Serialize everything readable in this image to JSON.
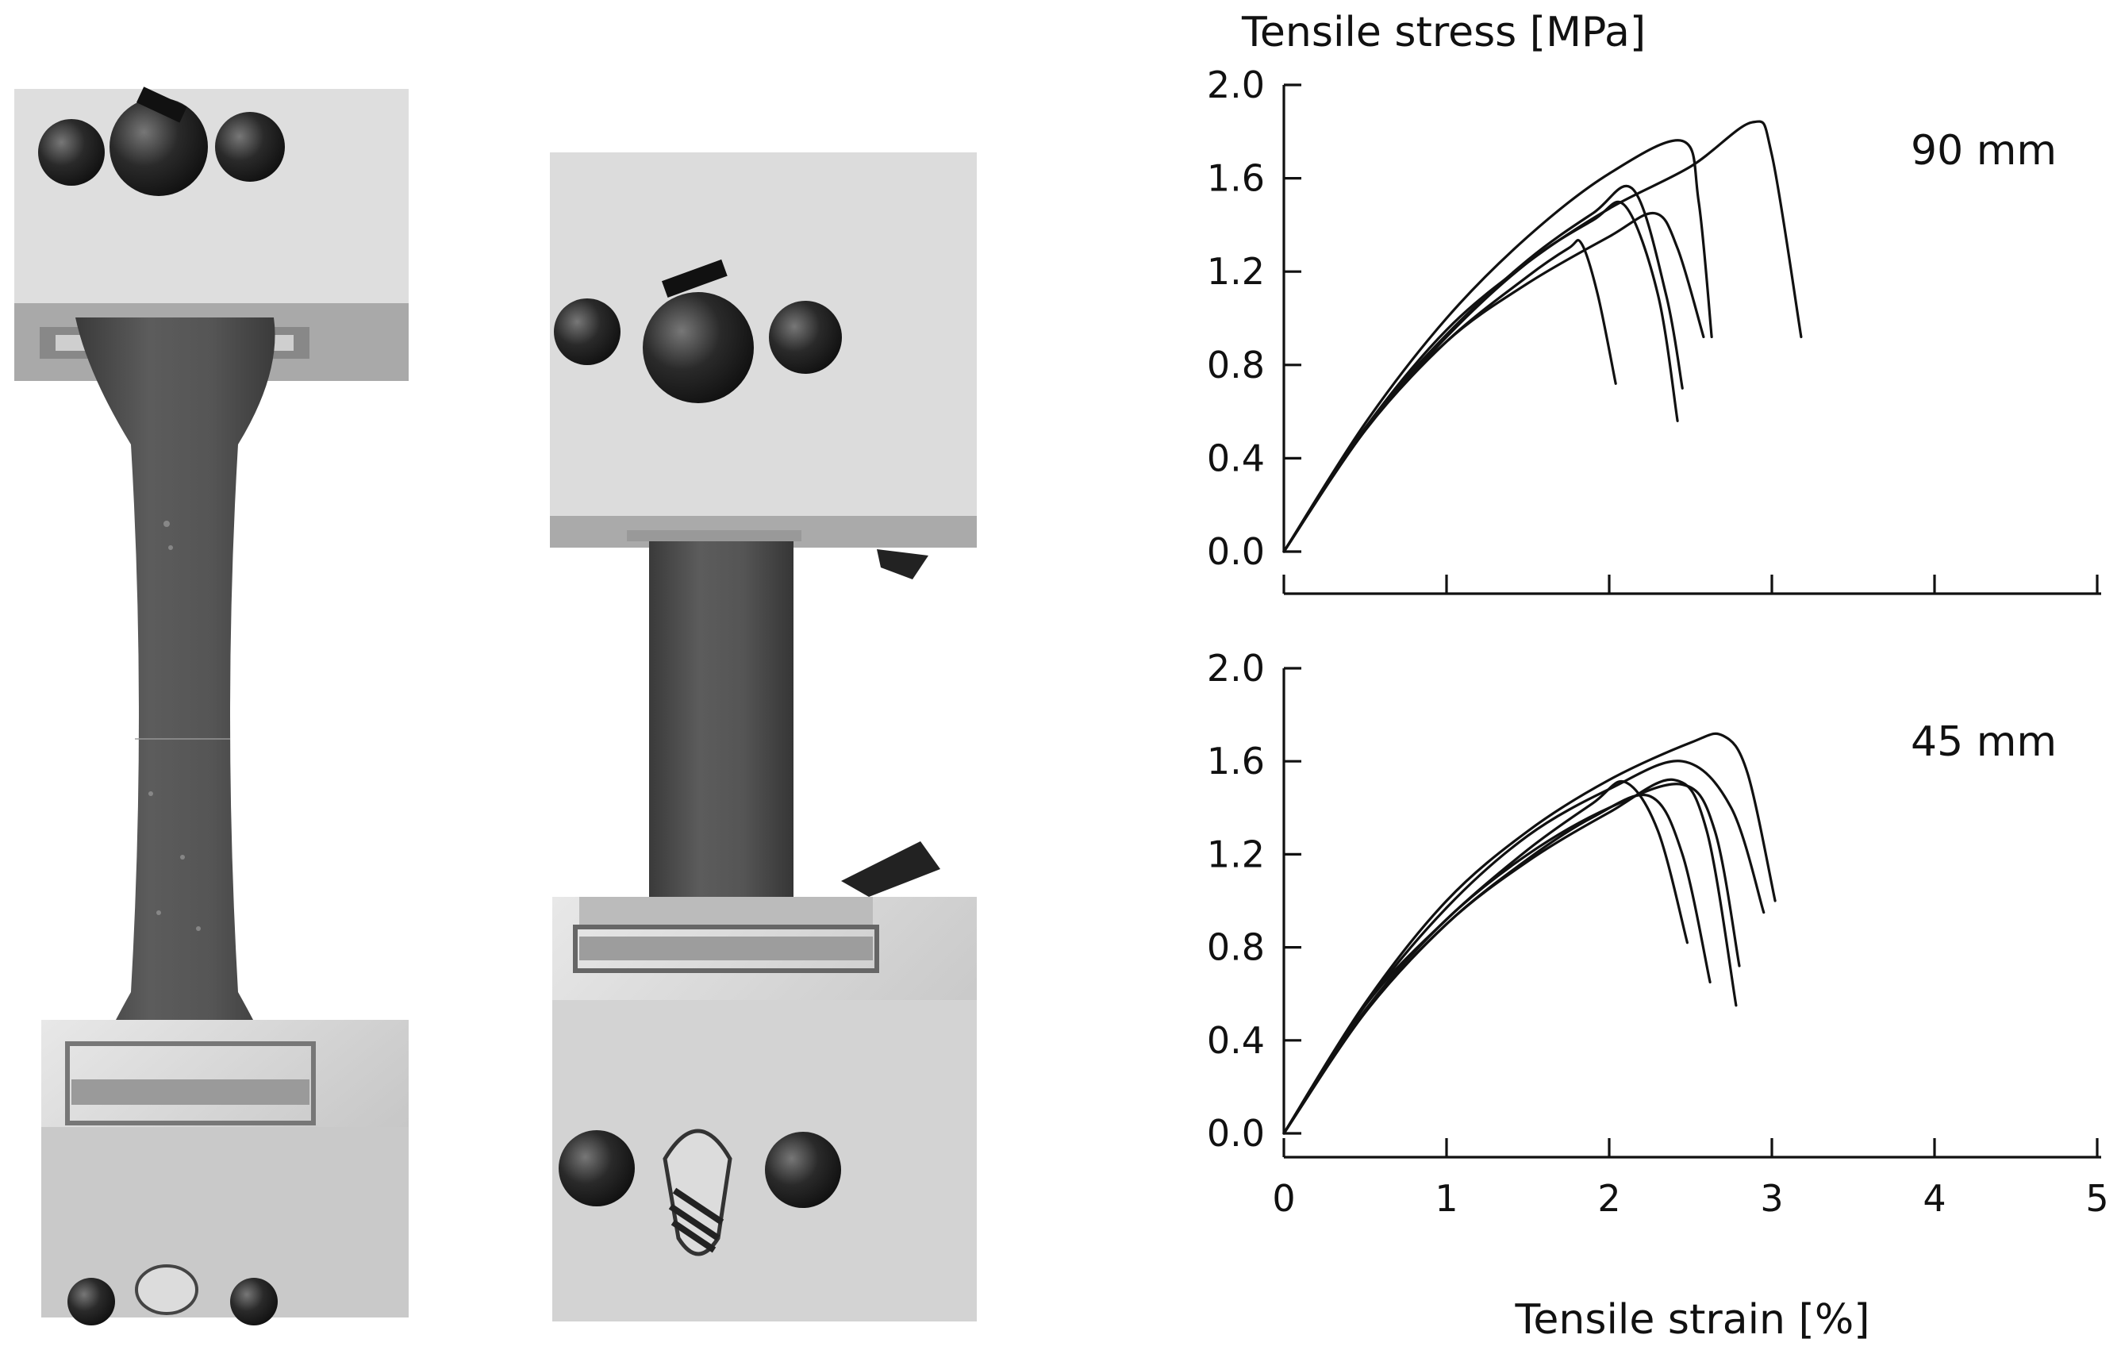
{
  "chart_data": [
    {
      "type": "line",
      "annotation": "90 mm",
      "ylabel": "Tensile stress [MPa]",
      "xlabel": "",
      "xlim": [
        0,
        5
      ],
      "ylim": [
        0,
        2.0
      ],
      "xticks": [
        "",
        "",
        "",
        "",
        "",
        ""
      ],
      "yticks": [
        "0.0",
        "0.4",
        "0.8",
        "1.2",
        "1.6",
        "2.0"
      ],
      "grid": false,
      "series": [
        {
          "x": [
            0,
            0.5,
            1.0,
            1.5,
            1.75,
            1.83,
            1.93,
            2.04
          ],
          "y": [
            0,
            0.52,
            0.9,
            1.18,
            1.3,
            1.32,
            1.1,
            0.72
          ]
        },
        {
          "x": [
            0,
            0.5,
            1.0,
            1.5,
            1.9,
            2.1,
            2.3,
            2.42
          ],
          "y": [
            0,
            0.52,
            0.92,
            1.24,
            1.42,
            1.48,
            1.1,
            0.56
          ]
        },
        {
          "x": [
            0,
            0.5,
            1.0,
            1.5,
            1.9,
            2.15,
            2.35,
            2.45
          ],
          "y": [
            0,
            0.53,
            0.93,
            1.25,
            1.45,
            1.55,
            1.1,
            0.7
          ]
        },
        {
          "x": [
            0,
            0.5,
            1.0,
            1.5,
            2.0,
            2.28,
            2.42,
            2.58
          ],
          "y": [
            0,
            0.52,
            0.9,
            1.15,
            1.35,
            1.45,
            1.3,
            0.92
          ]
        },
        {
          "x": [
            0,
            0.5,
            1.0,
            1.5,
            2.0,
            2.45,
            2.55,
            2.63
          ],
          "y": [
            0,
            0.55,
            1.0,
            1.35,
            1.62,
            1.76,
            1.5,
            0.92
          ]
        },
        {
          "x": [
            0,
            0.5,
            1.0,
            1.5,
            2.0,
            2.5,
            2.88,
            3.0,
            3.18
          ],
          "y": [
            0,
            0.53,
            0.95,
            1.24,
            1.47,
            1.65,
            1.84,
            1.7,
            0.92
          ]
        }
      ]
    },
    {
      "type": "line",
      "annotation": "45 mm",
      "ylabel": "",
      "xlabel": "Tensile strain [%]",
      "xlim": [
        0,
        5
      ],
      "ylim": [
        0,
        2.0
      ],
      "xticks": [
        "0",
        "1",
        "2",
        "3",
        "4",
        "5"
      ],
      "yticks": [
        "0.0",
        "0.4",
        "0.8",
        "1.2",
        "1.6",
        "2.0"
      ],
      "grid": false,
      "series": [
        {
          "x": [
            0,
            0.5,
            1.0,
            1.5,
            1.9,
            2.1,
            2.3,
            2.48
          ],
          "y": [
            0,
            0.55,
            0.92,
            1.22,
            1.42,
            1.51,
            1.3,
            0.82
          ]
        },
        {
          "x": [
            0,
            0.5,
            1.0,
            1.5,
            1.9,
            2.25,
            2.45,
            2.62
          ],
          "y": [
            0,
            0.52,
            0.9,
            1.18,
            1.36,
            1.45,
            1.2,
            0.65
          ]
        },
        {
          "x": [
            0,
            0.5,
            1.0,
            1.5,
            2.0,
            2.4,
            2.6,
            2.78
          ],
          "y": [
            0,
            0.52,
            0.9,
            1.17,
            1.38,
            1.52,
            1.3,
            0.55
          ]
        },
        {
          "x": [
            0,
            0.5,
            1.0,
            1.5,
            2.0,
            2.45,
            2.65,
            2.8
          ],
          "y": [
            0,
            0.53,
            0.92,
            1.2,
            1.4,
            1.5,
            1.3,
            0.72
          ]
        },
        {
          "x": [
            0,
            0.5,
            1.0,
            1.5,
            2.0,
            2.45,
            2.75,
            2.95
          ],
          "y": [
            0,
            0.55,
            0.97,
            1.28,
            1.48,
            1.6,
            1.4,
            0.95
          ]
        },
        {
          "x": [
            0,
            0.5,
            1.0,
            1.5,
            2.0,
            2.5,
            2.7,
            2.85,
            3.02
          ],
          "y": [
            0,
            0.56,
            1.0,
            1.3,
            1.52,
            1.68,
            1.71,
            1.55,
            1.0
          ]
        }
      ]
    }
  ]
}
